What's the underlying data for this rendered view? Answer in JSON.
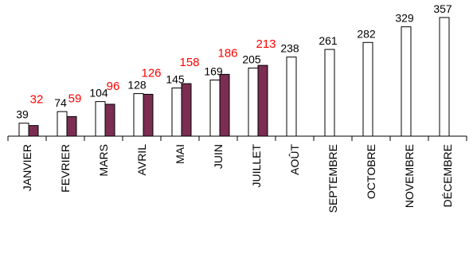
{
  "chart_data": {
    "type": "bar",
    "categories": [
      "JANVIER",
      "FEVRIER",
      "MARS",
      "AVRIL",
      "MAI",
      "JUIN",
      "JUILLET",
      "AOÛT",
      "SEPTEMBRE",
      "OCTOBRE",
      "NOVEMBRE",
      "DÉCEMBRE"
    ],
    "series": [
      {
        "values": [
          39,
          74,
          104,
          128,
          145,
          169,
          205,
          238,
          261,
          282,
          329,
          357
        ],
        "color": "#ffffff",
        "label_color": "#000000"
      },
      {
        "values": [
          32,
          59,
          96,
          126,
          158,
          186,
          213,
          null,
          null,
          null,
          null,
          null
        ],
        "color": "#7b2d52",
        "label_color": "#ff0000"
      }
    ],
    "title": "",
    "xlabel": "",
    "ylabel": "",
    "ylim": [
      0,
      400
    ],
    "grid": false,
    "legend": "none"
  }
}
